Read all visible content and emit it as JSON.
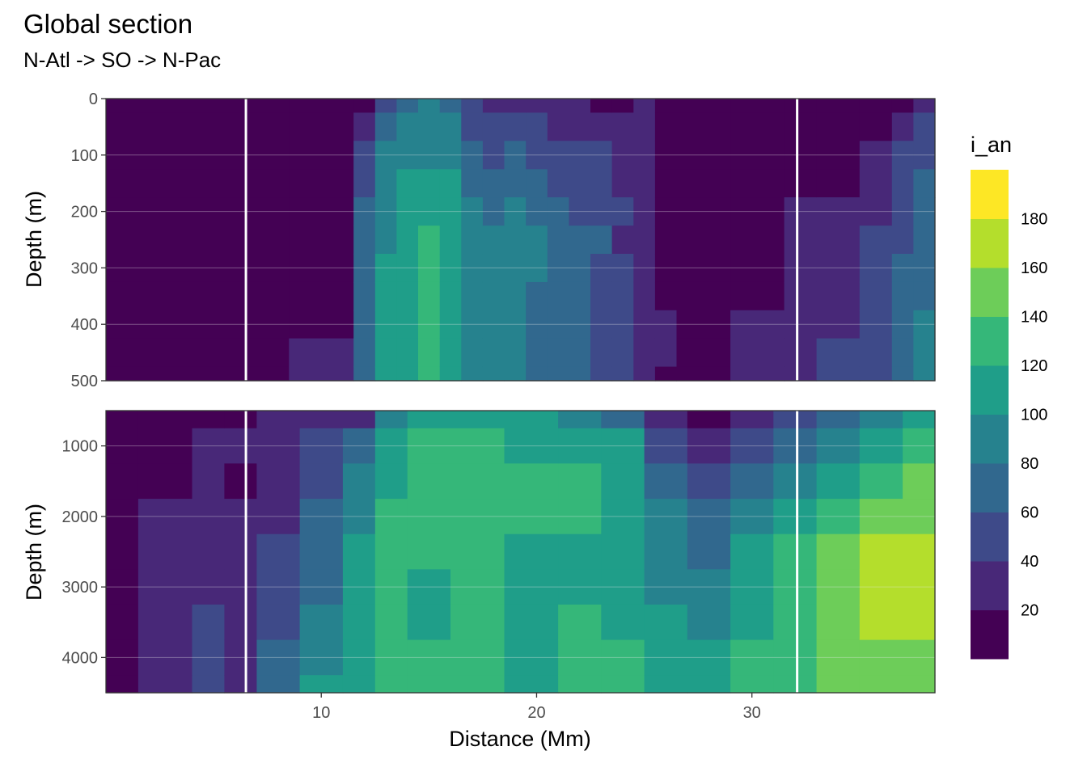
{
  "chart_data": {
    "type": "heatmap",
    "title": "Global section",
    "subtitle": "N-Atl -> SO -> N-Pac",
    "xlabel": "Distance (Mm)",
    "ylabel": "Depth (m)",
    "x_ticks": [
      10,
      20,
      30
    ],
    "xlim": [
      0,
      38.5
    ],
    "legend_title": "i_an",
    "legend_placement": "right",
    "grid": true,
    "colorscale": {
      "bins": [
        0,
        20,
        40,
        60,
        80,
        100,
        120,
        140,
        160,
        180,
        200
      ],
      "colors": [
        "#440154",
        "#482878",
        "#3E4A89",
        "#31688E",
        "#26828E",
        "#1F9E89",
        "#35B779",
        "#6DCD59",
        "#B4DE2C",
        "#FDE725"
      ],
      "tick_labels": [
        20,
        40,
        60,
        80,
        100,
        120,
        140,
        160,
        180
      ]
    },
    "separator_lines_x": [
      6.5,
      32.1
    ],
    "panels": [
      {
        "ylim": [
          0,
          500
        ],
        "y_ticks": [
          0,
          100,
          200,
          300,
          400,
          500
        ],
        "y_tick_labels": [
          "0",
          "100",
          "200",
          "300",
          "400",
          "500"
        ],
        "depths": [
          0,
          50,
          100,
          150,
          200,
          250,
          300,
          350,
          400,
          450,
          500
        ],
        "columns": [
          {
            "x": 6,
            "v": [
              10,
              10,
              10,
              10,
              10,
              10,
              10,
              10,
              10,
              10,
              10
            ]
          },
          {
            "x": 11,
            "v": [
              10,
              10,
              10,
              10,
              10,
              10,
              10,
              10,
              10,
              30,
              30
            ]
          },
          {
            "x": 12,
            "v": [
              10,
              30,
              50,
              50,
              70,
              70,
              70,
              70,
              70,
              70,
              70
            ]
          },
          {
            "x": 13,
            "v": [
              50,
              70,
              90,
              90,
              90,
              90,
              110,
              110,
              110,
              110,
              110
            ]
          },
          {
            "x": 14,
            "v": [
              70,
              90,
              90,
              110,
              110,
              110,
              110,
              110,
              110,
              110,
              110
            ]
          },
          {
            "x": 15,
            "v": [
              90,
              90,
              90,
              110,
              110,
              130,
              130,
              130,
              130,
              130,
              130
            ]
          },
          {
            "x": 16,
            "v": [
              70,
              90,
              90,
              110,
              110,
              110,
              110,
              110,
              110,
              110,
              110
            ]
          },
          {
            "x": 17,
            "v": [
              50,
              50,
              70,
              70,
              90,
              90,
              90,
              90,
              90,
              90,
              90
            ]
          },
          {
            "x": 18,
            "v": [
              30,
              50,
              50,
              70,
              70,
              90,
              90,
              90,
              90,
              90,
              90
            ]
          },
          {
            "x": 19,
            "v": [
              30,
              50,
              70,
              70,
              90,
              90,
              90,
              90,
              90,
              90,
              90
            ]
          },
          {
            "x": 20,
            "v": [
              30,
              50,
              50,
              70,
              70,
              90,
              90,
              70,
              70,
              70,
              70
            ]
          },
          {
            "x": 21,
            "v": [
              30,
              30,
              50,
              50,
              70,
              70,
              70,
              70,
              70,
              70,
              70
            ]
          },
          {
            "x": 22,
            "v": [
              30,
              30,
              50,
              50,
              50,
              70,
              70,
              70,
              70,
              70,
              70
            ]
          },
          {
            "x": 23,
            "v": [
              10,
              30,
              50,
              50,
              50,
              70,
              50,
              50,
              50,
              50,
              50
            ]
          },
          {
            "x": 24,
            "v": [
              10,
              30,
              30,
              30,
              50,
              30,
              50,
              50,
              50,
              50,
              50
            ]
          },
          {
            "x": 25,
            "v": [
              30,
              30,
              30,
              30,
              30,
              30,
              30,
              30,
              30,
              30,
              30
            ]
          },
          {
            "x": 26,
            "v": [
              10,
              10,
              10,
              10,
              10,
              10,
              10,
              10,
              30,
              30,
              10
            ]
          },
          {
            "x": 27,
            "v": [
              10,
              10,
              10,
              10,
              10,
              10,
              10,
              10,
              10,
              10,
              10
            ]
          },
          {
            "x": 31,
            "v": [
              10,
              10,
              10,
              10,
              10,
              10,
              10,
              10,
              30,
              30,
              30
            ]
          },
          {
            "x": 32,
            "v": [
              10,
              10,
              10,
              10,
              30,
              30,
              30,
              30,
              30,
              30,
              30
            ]
          },
          {
            "x": 34,
            "v": [
              10,
              10,
              10,
              10,
              30,
              30,
              30,
              30,
              30,
              50,
              50
            ]
          },
          {
            "x": 36,
            "v": [
              10,
              10,
              30,
              30,
              30,
              50,
              50,
              50,
              50,
              50,
              50
            ]
          },
          {
            "x": 37,
            "v": [
              10,
              30,
              50,
              50,
              50,
              50,
              70,
              70,
              70,
              70,
              70
            ]
          },
          {
            "x": 38,
            "v": [
              30,
              50,
              50,
              70,
              70,
              70,
              70,
              70,
              90,
              90,
              90
            ]
          }
        ]
      },
      {
        "ylim": [
          500,
          4500
        ],
        "y_ticks": [
          1000,
          2000,
          3000,
          4000
        ],
        "y_tick_labels": [
          "1000",
          "2000",
          "3000",
          "4000"
        ],
        "depths": [
          500,
          1000,
          1500,
          2000,
          2500,
          3000,
          3500,
          4000,
          4500
        ],
        "columns": [
          {
            "x": 0,
            "v": [
              10,
              10,
              10,
              10,
              10,
              10,
              10,
              10,
              10
            ]
          },
          {
            "x": 3,
            "v": [
              10,
              10,
              10,
              30,
              30,
              30,
              30,
              30,
              30
            ]
          },
          {
            "x": 5,
            "v": [
              10,
              30,
              30,
              30,
              30,
              30,
              50,
              50,
              50
            ]
          },
          {
            "x": 6,
            "v": [
              10,
              30,
              10,
              30,
              30,
              30,
              30,
              30,
              30
            ]
          },
          {
            "x": 8,
            "v": [
              30,
              30,
              30,
              30,
              50,
              50,
              50,
              70,
              70
            ]
          },
          {
            "x": 10,
            "v": [
              30,
              50,
              50,
              70,
              70,
              70,
              90,
              90,
              110
            ]
          },
          {
            "x": 12,
            "v": [
              30,
              70,
              90,
              90,
              110,
              110,
              110,
              110,
              110
            ]
          },
          {
            "x": 13,
            "v": [
              90,
              110,
              110,
              130,
              130,
              130,
              130,
              130,
              130
            ]
          },
          {
            "x": 15,
            "v": [
              110,
              130,
              130,
              130,
              130,
              110,
              110,
              130,
              130
            ]
          },
          {
            "x": 17,
            "v": [
              110,
              130,
              130,
              130,
              130,
              130,
              130,
              130,
              130
            ]
          },
          {
            "x": 20,
            "v": [
              110,
              110,
              130,
              130,
              110,
              110,
              110,
              110,
              110
            ]
          },
          {
            "x": 22,
            "v": [
              90,
              110,
              130,
              130,
              110,
              110,
              130,
              130,
              130
            ]
          },
          {
            "x": 24,
            "v": [
              70,
              110,
              110,
              110,
              110,
              110,
              110,
              130,
              130
            ]
          },
          {
            "x": 26,
            "v": [
              30,
              50,
              70,
              90,
              90,
              90,
              110,
              110,
              110
            ]
          },
          {
            "x": 28,
            "v": [
              10,
              30,
              50,
              70,
              70,
              90,
              90,
              110,
              110
            ]
          },
          {
            "x": 30,
            "v": [
              30,
              50,
              70,
              90,
              110,
              110,
              110,
              130,
              130
            ]
          },
          {
            "x": 32,
            "v": [
              50,
              70,
              90,
              110,
              130,
              130,
              130,
              130,
              130
            ]
          },
          {
            "x": 34,
            "v": [
              70,
              90,
              110,
              130,
              150,
              150,
              150,
              150,
              150
            ]
          },
          {
            "x": 36,
            "v": [
              90,
              110,
              130,
              150,
              170,
              170,
              170,
              150,
              150
            ]
          },
          {
            "x": 38,
            "v": [
              110,
              130,
              150,
              150,
              170,
              170,
              170,
              150,
              150
            ]
          }
        ]
      }
    ]
  }
}
